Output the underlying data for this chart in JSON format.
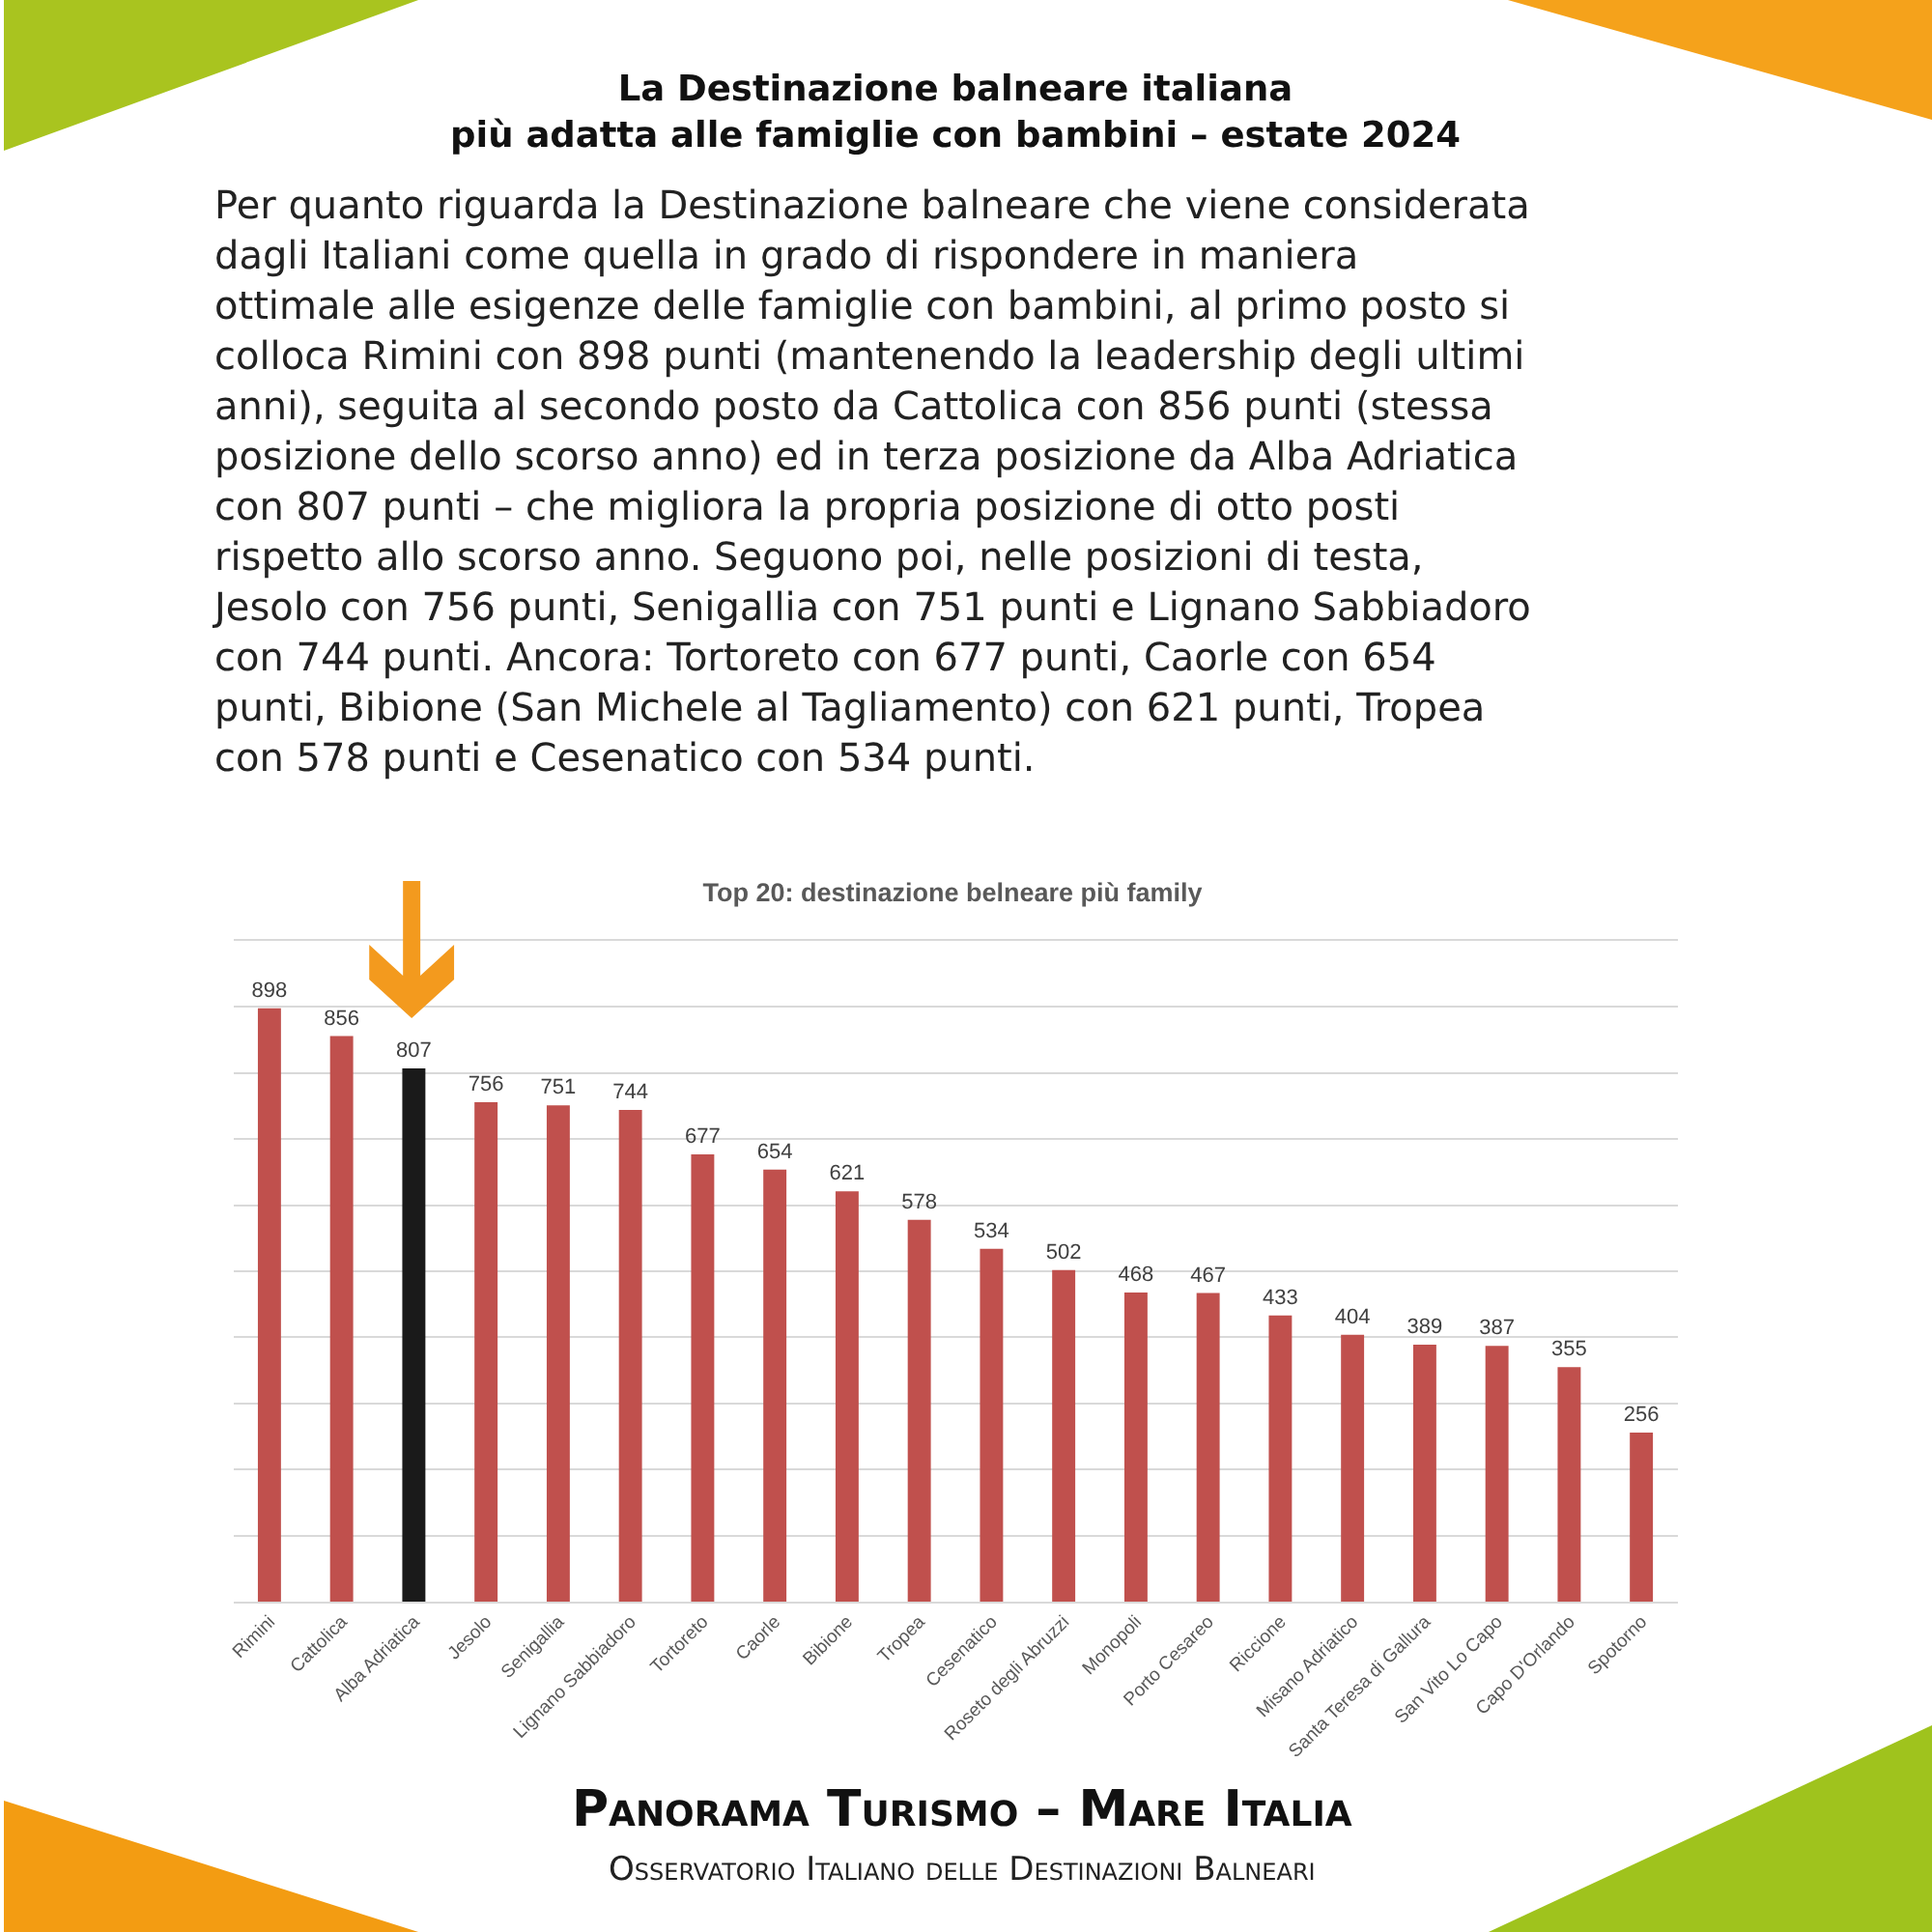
{
  "chart_data": {
    "type": "bar",
    "title": "Top 20: destinazione belneare più family",
    "categories": [
      "Rimini",
      "Cattolica",
      "Alba Adriatica",
      "Jesolo",
      "Senigallia",
      "Lignano Sabbiadoro",
      "Tortoreto",
      "Caorle",
      "Bibione",
      "Tropea",
      "Cesenatico",
      "Roseto degli Abruzzi",
      "Monopoli",
      "Porto Cesareo",
      "Riccione",
      "Misano Adriatico",
      "Santa Teresa di Gallura",
      "San Vito Lo Capo",
      "Capo D'Orlando",
      "Spotorno"
    ],
    "values": [
      898,
      856,
      807,
      756,
      751,
      744,
      677,
      654,
      621,
      578,
      534,
      502,
      468,
      467,
      433,
      404,
      389,
      387,
      355,
      256
    ],
    "colors": [
      "#c0504d",
      "#c0504d",
      "#1a1a1a",
      "#c0504d",
      "#c0504d",
      "#c0504d",
      "#c0504d",
      "#c0504d",
      "#c0504d",
      "#c0504d",
      "#c0504d",
      "#c0504d",
      "#c0504d",
      "#c0504d",
      "#c0504d",
      "#c0504d",
      "#c0504d",
      "#c0504d",
      "#c0504d",
      "#c0504d"
    ],
    "ylim": [
      0,
      1000
    ],
    "yticks": [
      0,
      100,
      200,
      300,
      400,
      500,
      600,
      700,
      800,
      900,
      1000
    ],
    "grid": "y",
    "tick_labels": "x",
    "data_labels": true,
    "annotations": [
      "La Destinazione balneare italiana\npiù adatta alle famiglie con bambini – estate 2024",
      "Per quanto riguarda la Destinazione balneare che viene considerata dagli Italiani come quella in grado di rispondere in maniera ottimale alle esigenze delle famiglie con bambini, al primo posto si colloca Rimini con 898 punti (mantenendo la leadership degli ultimi anni), seguita al secondo posto da Cattolica con 856 punti (stessa posizione dello scorso anno) ed in terza posizione da Alba Adriatica con 807 punti – che migliora la propria posizione di otto posti rispetto allo scorso anno. Seguono poi, nelle posizioni di testa, Jesolo con 756 punti, Senigallia con 751 punti e Lignano Sabbiadoro con 744 punti. Ancora: Tortoreto con 677 punti, Caorle con 654 punti, Bibione (San Michele al Tagliamento) con 621 punti, Tropea con 578 punti e Cesenatico con 534 punti.",
      "Panorama Turismo – Mare Italia",
      "Osservatorio Italiano delle Destinazioni Balneari"
    ]
  }
}
